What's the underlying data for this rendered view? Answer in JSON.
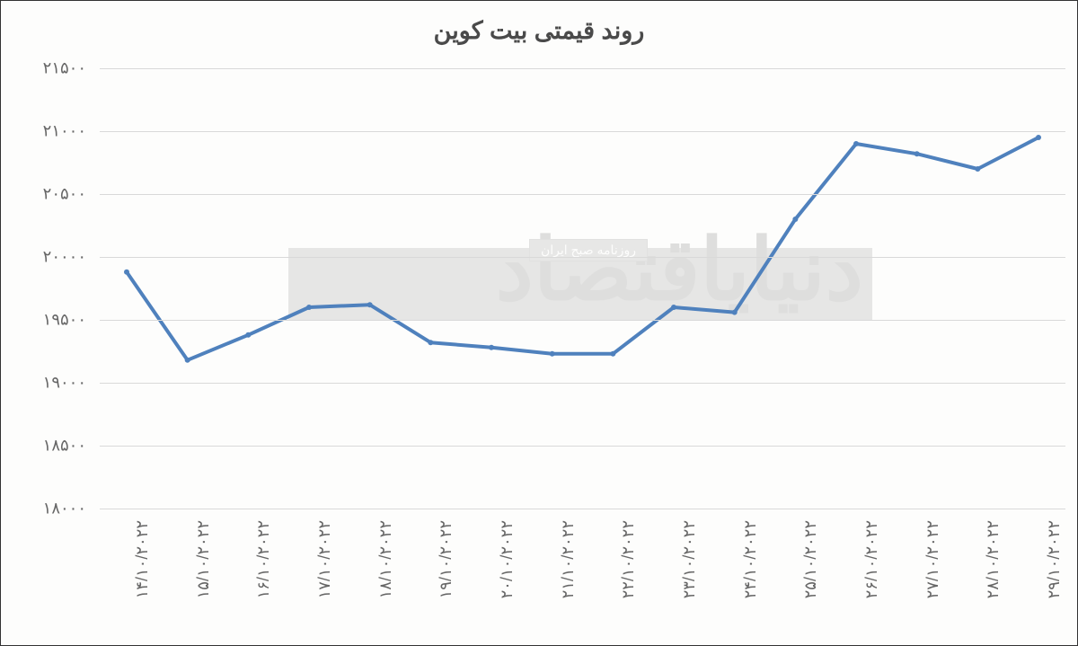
{
  "chart": {
    "type": "line",
    "title": "روند قیمتی بیت کوین",
    "title_fontsize": 27,
    "title_color": "#4a4a4a",
    "background_color": "#fdfdfc",
    "line_color": "#4f81bd",
    "line_width": 4,
    "marker_color": "#4f81bd",
    "marker_size": 6,
    "grid_color": "#d9d9d9",
    "ylim": [
      18000,
      21500
    ],
    "ytick_step": 500,
    "y_ticks": [
      "۱۸۰۰۰",
      "۱۸۵۰۰",
      "۱۹۰۰۰",
      "۱۹۵۰۰",
      "۲۰۰۰۰",
      "۲۰۵۰۰",
      "۲۱۰۰۰",
      "۲۱۵۰۰"
    ],
    "y_values_numeric": [
      18000,
      18500,
      19000,
      19500,
      20000,
      20500,
      21000,
      21500
    ],
    "x_labels": [
      "۱۴/۱۰/۲۰۲۲",
      "۱۵/۱۰/۲۰۲۲",
      "۱۶/۱۰/۲۰۲۲",
      "۱۷/۱۰/۲۰۲۲",
      "۱۸/۱۰/۲۰۲۲",
      "۱۹/۱۰/۲۰۲۲",
      "۲۰/۱۰/۲۰۲۲",
      "۲۱/۱۰/۲۰۲۲",
      "۲۲/۱۰/۲۰۲۲",
      "۲۳/۱۰/۲۰۲۲",
      "۲۴/۱۰/۲۰۲۲",
      "۲۵/۱۰/۲۰۲۲",
      "۲۶/۱۰/۲۰۲۲",
      "۲۷/۱۰/۲۰۲۲",
      "۲۸/۱۰/۲۰۲۲",
      "۲۹/۱۰/۲۰۲۲"
    ],
    "values": [
      19880,
      19180,
      19380,
      19600,
      19620,
      19320,
      19280,
      19230,
      19230,
      19600,
      19560,
      20300,
      20900,
      20820,
      20700,
      20950
    ],
    "tick_fontsize": 18,
    "tick_color": "#666666"
  },
  "watermark": {
    "text": "دنیای​اقتصاد",
    "subtitle": "روزنامه صبح ایران",
    "opacity": 0.18,
    "color": "#808080"
  }
}
